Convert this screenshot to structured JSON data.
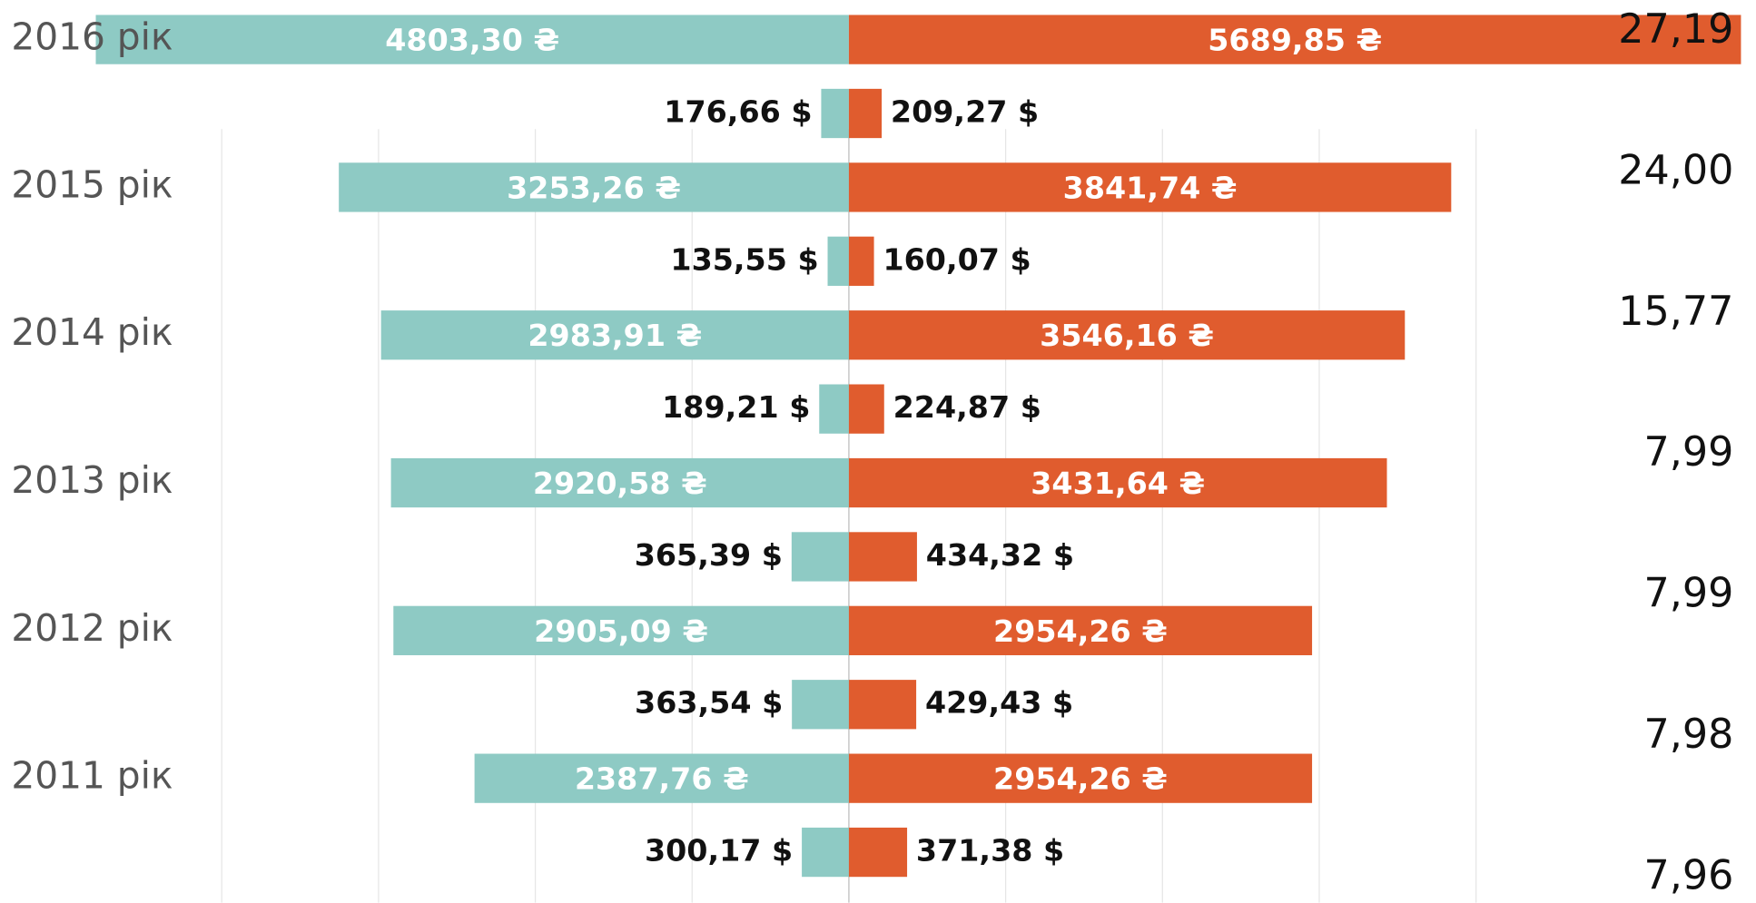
{
  "chart_data": {
    "type": "butterfly",
    "categories": [
      "2016 рік",
      null,
      "2015 рік",
      null,
      "2014 рік",
      null,
      "2013 рік",
      null,
      "2012 рік",
      null,
      "2011 рік",
      null
    ],
    "series": [
      {
        "color": "#8ecac4",
        "side": "left",
        "values": [
          4803.3,
          176.66,
          3253.26,
          135.55,
          2983.91,
          189.21,
          2920.58,
          365.39,
          2905.09,
          363.54,
          2387.76,
          300.17
        ],
        "value_labels": [
          "4803,30 ₴",
          "176,66 $",
          "3253,26 ₴",
          "135,55 $",
          "2983,91 ₴",
          "189,21 $",
          "2920,58 ₴",
          "365,39 $",
          "2905,09 ₴",
          "363,54 $",
          "2387,76 ₴",
          "300,17 $"
        ]
      },
      {
        "color": "#e05c2e",
        "side": "right",
        "values": [
          5689.85,
          209.27,
          3841.74,
          160.07,
          3546.16,
          224.87,
          3431.64,
          434.32,
          2954.26,
          429.43,
          2954.26,
          371.38
        ],
        "value_labels": [
          "5689,85 ₴",
          "209,27 $",
          "3841,74 ₴",
          "160,07 $",
          "3546,16 ₴",
          "224,87 $",
          "3431,64 ₴",
          "434,32 $",
          "2954,26 ₴",
          "429,43 $",
          "2954,26 ₴",
          "371,38 $"
        ]
      }
    ],
    "xlim": [
      -4000,
      4000
    ],
    "xticks": [
      -4000,
      -3000,
      -2000,
      -1000,
      0,
      1000,
      2000,
      3000,
      4000
    ],
    "grid": true,
    "annotations": [
      "27,19",
      "24,00",
      "15,77",
      "7,99",
      "7,99",
      "7,98",
      "7,96"
    ]
  }
}
